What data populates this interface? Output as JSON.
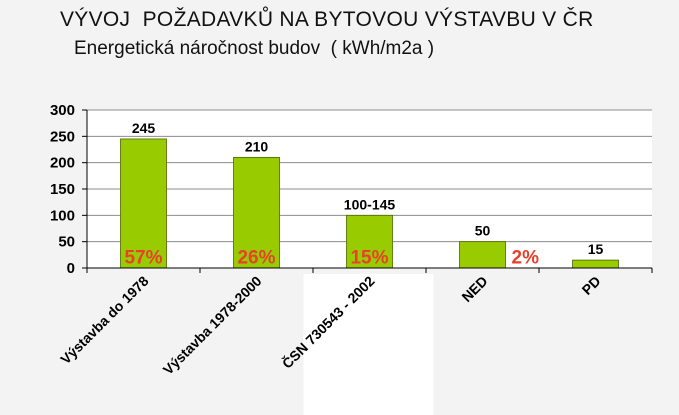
{
  "header": {
    "title": "VÝVOJ  POŽADAVKŮ NA BYTOVOU VÝSTAVBU V ČR",
    "subtitle": "Energetická náročnost budov  ( kWh/m2a )"
  },
  "chart_data": {
    "type": "bar",
    "categories": [
      "Výstavba do 1978",
      "Výstavba 1978-2000",
      "ČSN 730543 - 2002",
      "NED",
      "PD"
    ],
    "values": [
      245,
      210,
      100,
      50,
      15
    ],
    "data_labels": [
      "245",
      "210",
      "100-145",
      "50",
      "15"
    ],
    "percent_labels": [
      "57%",
      "26%",
      "15%",
      "2%",
      ""
    ],
    "highlighted_category_index": 2,
    "yticks": [
      0,
      50,
      100,
      150,
      200,
      250,
      300
    ],
    "ylim": [
      0,
      300
    ],
    "grid": true,
    "legend": "none",
    "colors": {
      "bar": "#99cc00",
      "bar_edge": "#4d6600",
      "percent": "#e8402a",
      "plot_bg": "#ffffff",
      "page_bg": "#f3f3f3"
    }
  }
}
